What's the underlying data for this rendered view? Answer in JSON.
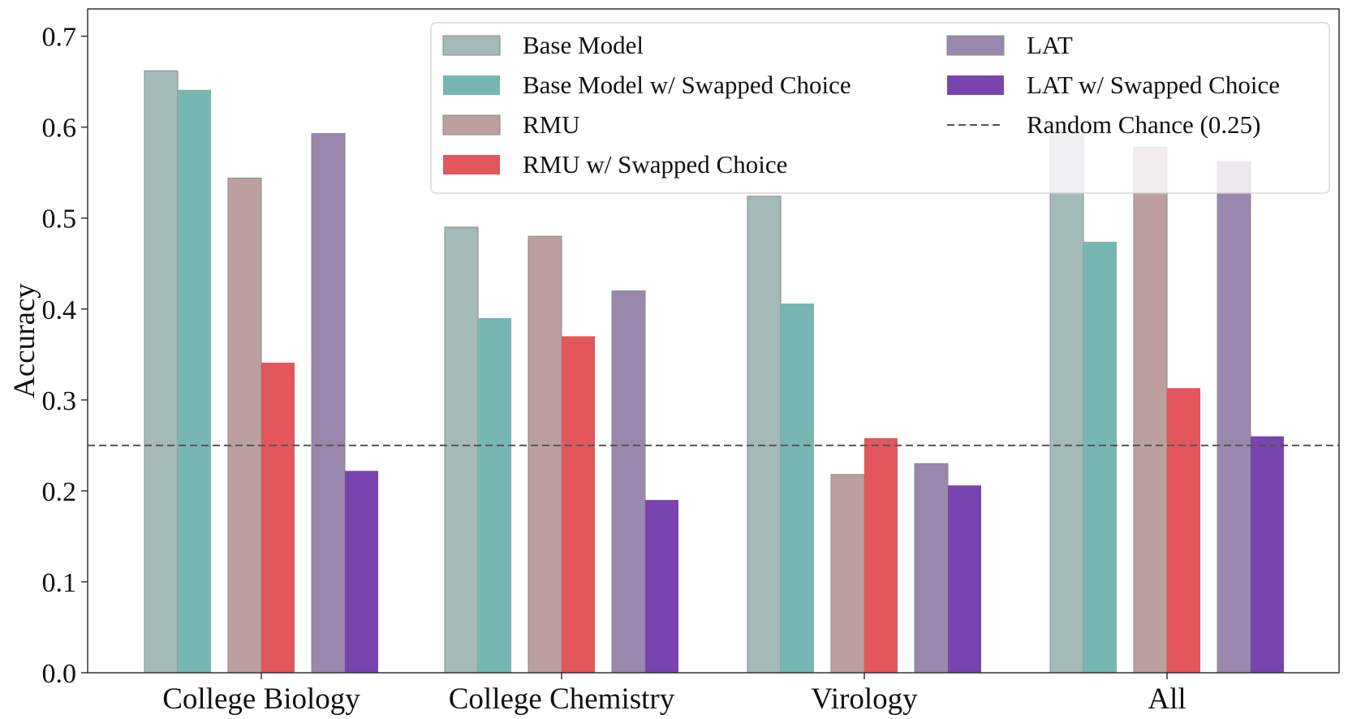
{
  "chart_data": {
    "type": "bar",
    "title": "",
    "xlabel": "",
    "ylabel": "Accuracy",
    "ylim": [
      0,
      0.73
    ],
    "yticks": [
      "0.0",
      "0.1",
      "0.2",
      "0.3",
      "0.4",
      "0.5",
      "0.6",
      "0.7"
    ],
    "grid": false,
    "legend_position": "top-right",
    "categories": [
      "College Biology",
      "College Chemistry",
      "Virology",
      "All"
    ],
    "series": [
      {
        "name": "Base Model",
        "color": "#a3bab8",
        "edge": "#888888",
        "values": [
          0.662,
          0.49,
          0.524,
          0.596
        ]
      },
      {
        "name": "Base Model w/ Swapped Choice",
        "color": "#78b6b2",
        "edge": null,
        "values": [
          0.641,
          0.39,
          0.406,
          0.474
        ]
      },
      {
        "name": "RMU",
        "color": "#bd9fa0",
        "edge": "#888888",
        "values": [
          0.544,
          0.48,
          0.218,
          0.578
        ]
      },
      {
        "name": "RMU w/ Swapped Choice",
        "color": "#e2565c",
        "edge": null,
        "values": [
          0.341,
          0.37,
          0.258,
          0.313
        ]
      },
      {
        "name": "LAT",
        "color": "#9a87ae",
        "edge": "#888888",
        "values": [
          0.593,
          0.42,
          0.23,
          0.562
        ]
      },
      {
        "name": "LAT w/ Swapped Choice",
        "color": "#7a44ae",
        "edge": null,
        "values": [
          0.222,
          0.19,
          0.206,
          0.26
        ]
      }
    ],
    "reference_line": {
      "name": "Random Chance (0.25)",
      "value": 0.25,
      "style": "dashed",
      "color": "#555555"
    }
  }
}
